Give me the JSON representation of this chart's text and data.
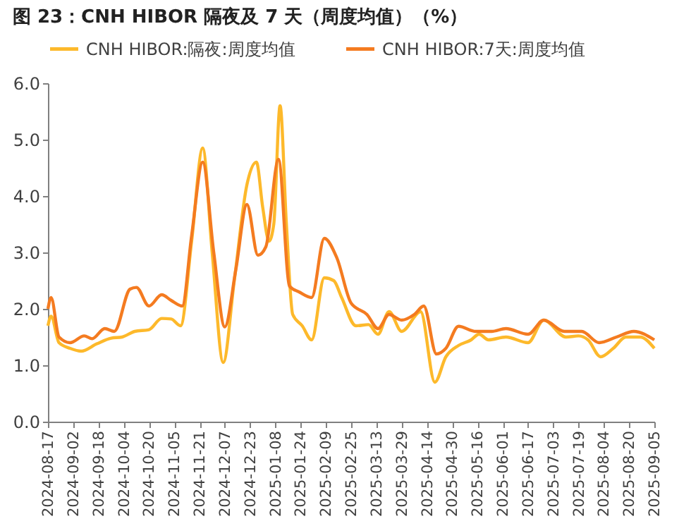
{
  "chart_data": {
    "type": "line",
    "title": "图 23：CNH HIBOR 隔夜及 7 天（周度均值）（%）",
    "series": [
      {
        "name": "CNH HIBOR:隔夜:周度均值",
        "color": "#fdb92b",
        "x": [
          "2024-08-17",
          "2024-08-19",
          "2024-08-24",
          "2024-08-31",
          "2024-09-07",
          "2024-09-17",
          "2024-09-26",
          "2024-10-03",
          "2024-10-11",
          "2024-10-20",
          "2024-10-28",
          "2024-11-03",
          "2024-11-09",
          "2024-11-16",
          "2024-11-23",
          "2024-11-29",
          "2024-12-06",
          "2024-12-13",
          "2024-12-21",
          "2024-12-27",
          "2024-12-31",
          "2025-01-04",
          "2025-01-07",
          "2025-01-11",
          "2025-01-15",
          "2025-01-19",
          "2025-01-25",
          "2025-01-31",
          "2025-02-08",
          "2025-02-14",
          "2025-02-19",
          "2025-02-28",
          "2025-03-08",
          "2025-03-14",
          "2025-03-21",
          "2025-03-29",
          "2025-04-10",
          "2025-04-19",
          "2025-04-26",
          "2025-05-04",
          "2025-05-12",
          "2025-05-17",
          "2025-05-23",
          "2025-06-03",
          "2025-06-17",
          "2025-06-27",
          "2025-07-11",
          "2025-07-19",
          "2025-07-25",
          "2025-08-02",
          "2025-08-10",
          "2025-08-18",
          "2025-08-27",
          "2025-09-05"
        ],
        "values": [
          1.7,
          1.87,
          1.4,
          1.3,
          1.25,
          1.38,
          1.48,
          1.5,
          1.6,
          1.63,
          1.83,
          1.82,
          1.7,
          3.2,
          4.85,
          3.0,
          1.05,
          2.5,
          4.2,
          4.6,
          3.8,
          3.2,
          3.5,
          5.6,
          3.5,
          1.9,
          1.7,
          1.45,
          2.55,
          2.5,
          2.2,
          1.7,
          1.72,
          1.55,
          1.95,
          1.6,
          1.95,
          0.7,
          1.15,
          1.35,
          1.45,
          1.55,
          1.45,
          1.5,
          1.4,
          1.8,
          1.5,
          1.52,
          1.45,
          1.15,
          1.3,
          1.5,
          1.5,
          1.3
        ]
      },
      {
        "name": "CNH HIBOR:7天:周度均值",
        "color": "#f47b20",
        "x": [
          "2024-08-17",
          "2024-08-19",
          "2024-08-24",
          "2024-08-31",
          "2024-09-09",
          "2024-09-14",
          "2024-09-22",
          "2024-09-28",
          "2024-10-08",
          "2024-10-12",
          "2024-10-20",
          "2024-10-28",
          "2024-11-03",
          "2024-11-10",
          "2024-11-16",
          "2024-11-23",
          "2024-11-30",
          "2024-12-07",
          "2024-12-14",
          "2024-12-21",
          "2024-12-28",
          "2025-01-02",
          "2025-01-10",
          "2025-01-17",
          "2025-01-23",
          "2025-01-31",
          "2025-02-08",
          "2025-02-16",
          "2025-02-25",
          "2025-03-07",
          "2025-03-14",
          "2025-03-21",
          "2025-03-29",
          "2025-04-06",
          "2025-04-12",
          "2025-04-20",
          "2025-04-26",
          "2025-05-04",
          "2025-05-15",
          "2025-05-25",
          "2025-06-03",
          "2025-06-17",
          "2025-06-27",
          "2025-07-10",
          "2025-07-21",
          "2025-08-01",
          "2025-08-12",
          "2025-08-23",
          "2025-09-05"
        ],
        "values": [
          2.0,
          2.2,
          1.5,
          1.4,
          1.52,
          1.47,
          1.65,
          1.6,
          2.35,
          2.38,
          2.05,
          2.25,
          2.15,
          2.05,
          3.3,
          4.6,
          3.0,
          1.68,
          2.7,
          3.85,
          2.95,
          3.1,
          4.65,
          2.4,
          2.3,
          2.2,
          3.25,
          2.9,
          2.1,
          1.9,
          1.65,
          1.9,
          1.8,
          1.9,
          2.05,
          1.2,
          1.3,
          1.69,
          1.6,
          1.6,
          1.65,
          1.55,
          1.8,
          1.6,
          1.6,
          1.4,
          1.5,
          1.6,
          1.45
        ]
      }
    ],
    "xlim": [
      "2024-08-17",
      "2025-09-05"
    ],
    "xticks": [
      "2024-08-17",
      "2024-09-02",
      "2024-09-18",
      "2024-10-04",
      "2024-10-20",
      "2024-11-05",
      "2024-11-21",
      "2024-12-07",
      "2024-12-23",
      "2025-01-08",
      "2025-01-24",
      "2025-02-09",
      "2025-02-25",
      "2025-03-13",
      "2025-03-29",
      "2025-04-14",
      "2025-04-30",
      "2025-05-16",
      "2025-06-01",
      "2025-06-17",
      "2025-07-03",
      "2025-07-19",
      "2025-08-04",
      "2025-08-20",
      "2025-09-05"
    ],
    "ylim": [
      0,
      6
    ],
    "yticks": [
      {
        "value": 0,
        "label": "0.0"
      },
      {
        "value": 1,
        "label": "1.0"
      },
      {
        "value": 2,
        "label": "2.0"
      },
      {
        "value": 3,
        "label": "3.0"
      },
      {
        "value": 4,
        "label": "4.0"
      },
      {
        "value": 5,
        "label": "5.0"
      },
      {
        "value": 6,
        "label": "6.0"
      }
    ],
    "grid": false,
    "legend": "top",
    "line_style": "solid",
    "marker": "none"
  }
}
